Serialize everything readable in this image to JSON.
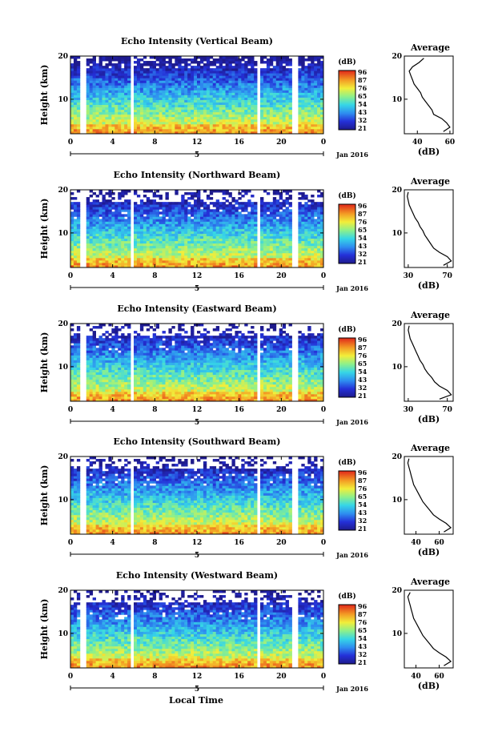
{
  "figure": {
    "xaxis_label": "Local Time",
    "date_label": "Jan 2016"
  },
  "chart_data": [
    {
      "type": "heatmap",
      "title": "Echo Intensity (Vertical Beam)",
      "ylabel": "Height (km)",
      "ylim": [
        2,
        20
      ],
      "xlim": [
        0,
        24
      ],
      "x_ticks": [
        "0",
        "4",
        "8",
        "12",
        "16",
        "20",
        "0"
      ],
      "day_marker": "5",
      "y_ticks": [
        "10",
        "20"
      ],
      "colorbar": {
        "label": "(dB)",
        "ticks": [
          "96",
          "87",
          "76",
          "65",
          "54",
          "43",
          "32",
          "21"
        ]
      },
      "data_gaps": [
        [
          1.0,
          1.5
        ],
        [
          5.7,
          5.9
        ],
        [
          17.7,
          17.9
        ],
        [
          21.0,
          21.5
        ]
      ],
      "profile": {
        "title": "Average",
        "xlabel": "(dB)",
        "x_ticks": [
          "40",
          "60"
        ],
        "xlim": [
          32,
          62
        ],
        "y_ticks": [
          "10",
          "20"
        ],
        "height": [
          2.5,
          3.5,
          4.5,
          5.5,
          6.5,
          7.5,
          8.5,
          9.5,
          10.5,
          11.5,
          12.5,
          13.5,
          14.5,
          15.5,
          16.5,
          17.5,
          18.5,
          19.5
        ],
        "db": [
          56,
          60,
          58,
          55,
          50,
          49,
          47,
          45,
          43,
          42,
          40,
          38,
          37,
          36,
          35,
          37,
          41,
          44
        ]
      }
    },
    {
      "type": "heatmap",
      "title": "Echo Intensity (Northward Beam)",
      "ylabel": "Height (km)",
      "ylim": [
        2,
        20
      ],
      "xlim": [
        0,
        24
      ],
      "x_ticks": [
        "0",
        "4",
        "8",
        "12",
        "16",
        "20",
        "0"
      ],
      "day_marker": "5",
      "y_ticks": [
        "10",
        "20"
      ],
      "colorbar": {
        "label": "(dB)",
        "ticks": [
          "96",
          "87",
          "76",
          "65",
          "54",
          "43",
          "32",
          "21"
        ]
      },
      "data_gaps": [
        [
          1.0,
          1.5
        ],
        [
          5.7,
          5.9
        ],
        [
          17.7,
          17.9
        ],
        [
          21.0,
          21.5
        ]
      ],
      "profile": {
        "title": "Average",
        "xlabel": "(dB)",
        "x_ticks": [
          "30",
          "70"
        ],
        "xlim": [
          26,
          76
        ],
        "y_ticks": [
          "10",
          "20"
        ],
        "height": [
          2.5,
          3.5,
          4.5,
          5.5,
          6.5,
          7.5,
          8.5,
          9.5,
          10.5,
          11.5,
          12.5,
          13.5,
          14.5,
          15.5,
          16.5,
          17.5,
          18.5,
          19.5
        ],
        "db": [
          66,
          74,
          70,
          62,
          56,
          53,
          50,
          47,
          45,
          42,
          40,
          37,
          35,
          33,
          31,
          30,
          29,
          30
        ]
      }
    },
    {
      "type": "heatmap",
      "title": "Echo Intensity (Eastward Beam)",
      "ylabel": "Height (km)",
      "ylim": [
        2,
        20
      ],
      "xlim": [
        0,
        24
      ],
      "x_ticks": [
        "0",
        "4",
        "8",
        "12",
        "16",
        "20",
        "0"
      ],
      "day_marker": "5",
      "y_ticks": [
        "10",
        "20"
      ],
      "colorbar": {
        "label": "(dB)",
        "ticks": [
          "96",
          "87",
          "76",
          "65",
          "54",
          "43",
          "32",
          "21"
        ]
      },
      "data_gaps": [
        [
          1.0,
          1.5
        ],
        [
          5.7,
          5.9
        ],
        [
          17.7,
          17.9
        ],
        [
          21.0,
          21.5
        ]
      ],
      "profile": {
        "title": "Average",
        "xlabel": "(dB)",
        "x_ticks": [
          "30",
          "70"
        ],
        "xlim": [
          26,
          76
        ],
        "y_ticks": [
          "10",
          "20"
        ],
        "height": [
          2.5,
          3.5,
          4.5,
          5.5,
          6.5,
          7.5,
          8.5,
          9.5,
          10.5,
          11.5,
          12.5,
          13.5,
          14.5,
          15.5,
          16.5,
          17.5,
          18.5,
          19.5
        ],
        "db": [
          62,
          74,
          70,
          62,
          57,
          54,
          50,
          47,
          45,
          42,
          40,
          38,
          36,
          34,
          32,
          31,
          30,
          31
        ]
      }
    },
    {
      "type": "heatmap",
      "title": "Echo Intensity (Southward Beam)",
      "ylabel": "Height (km)",
      "ylim": [
        2,
        20
      ],
      "xlim": [
        0,
        24
      ],
      "x_ticks": [
        "0",
        "4",
        "8",
        "12",
        "16",
        "20",
        "0"
      ],
      "day_marker": "5",
      "y_ticks": [
        "10",
        "20"
      ],
      "colorbar": {
        "label": "(dB)",
        "ticks": [
          "96",
          "87",
          "76",
          "65",
          "54",
          "43",
          "32",
          "21"
        ]
      },
      "data_gaps": [
        [
          1.0,
          1.5
        ],
        [
          5.7,
          5.9
        ],
        [
          17.7,
          17.9
        ],
        [
          21.0,
          21.5
        ]
      ],
      "profile": {
        "title": "Average",
        "xlabel": "(dB)",
        "x_ticks": [
          "40",
          "60"
        ],
        "xlim": [
          30,
          72
        ],
        "y_ticks": [
          "10",
          "20"
        ],
        "height": [
          2.5,
          3.5,
          4.5,
          5.5,
          6.5,
          7.5,
          8.5,
          9.5,
          10.5,
          11.5,
          12.5,
          13.5,
          14.5,
          15.5,
          16.5,
          17.5,
          18.5,
          19.5
        ],
        "db": [
          64,
          70,
          66,
          60,
          55,
          52,
          49,
          46,
          44,
          42,
          40,
          38,
          37,
          36,
          35,
          34,
          33,
          34
        ]
      }
    },
    {
      "type": "heatmap",
      "title": "Echo Intensity (Westward Beam)",
      "ylabel": "Height (km)",
      "ylim": [
        2,
        20
      ],
      "xlim": [
        0,
        24
      ],
      "x_ticks": [
        "0",
        "4",
        "8",
        "12",
        "16",
        "20",
        "0"
      ],
      "day_marker": "5",
      "y_ticks": [
        "10",
        "20"
      ],
      "colorbar": {
        "label": "(dB)",
        "ticks": [
          "96",
          "87",
          "76",
          "65",
          "54",
          "43",
          "32",
          "21"
        ]
      },
      "data_gaps": [
        [
          1.0,
          1.5
        ],
        [
          5.7,
          5.9
        ],
        [
          17.7,
          17.9
        ],
        [
          21.0,
          21.5
        ]
      ],
      "profile": {
        "title": "Average",
        "xlabel": "(dB)",
        "x_ticks": [
          "40",
          "60"
        ],
        "xlim": [
          30,
          72
        ],
        "y_ticks": [
          "10",
          "20"
        ],
        "height": [
          2.5,
          3.5,
          4.5,
          5.5,
          6.5,
          7.5,
          8.5,
          9.5,
          10.5,
          11.5,
          12.5,
          13.5,
          14.5,
          15.5,
          16.5,
          17.5,
          18.5,
          19.5
        ],
        "db": [
          64,
          70,
          66,
          60,
          55,
          52,
          49,
          46,
          44,
          42,
          40,
          38,
          37,
          36,
          35,
          34,
          33,
          35
        ]
      }
    }
  ]
}
